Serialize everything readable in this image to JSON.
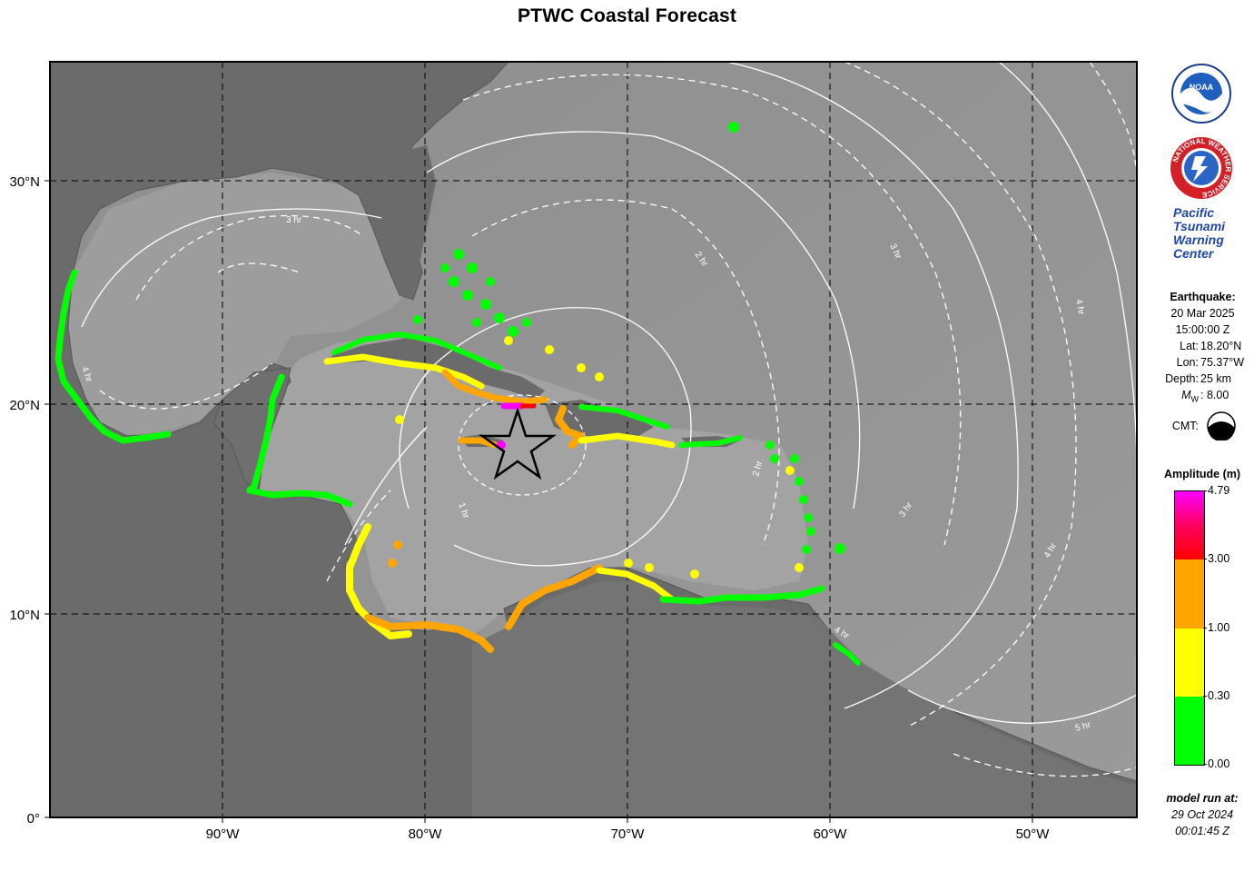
{
  "title": "PTWC Coastal Forecast",
  "axes": {
    "x_ticks": [
      {
        "label": "90°W",
        "lon": -90
      },
      {
        "label": "80°W",
        "lon": -80
      },
      {
        "label": "70°W",
        "lon": -70
      },
      {
        "label": "60°W",
        "lon": -60
      },
      {
        "label": "50°W",
        "lon": -50
      }
    ],
    "y_ticks": [
      {
        "label": "30°N",
        "lat": 30
      },
      {
        "label": "20°N",
        "lat": 20
      },
      {
        "label": "10°N",
        "lat": 10
      },
      {
        "label": "0°",
        "lat": 0
      }
    ],
    "lon_range": [
      -98.5,
      -45.5
    ],
    "lat_range": [
      0,
      35.5
    ]
  },
  "contour_labels": [
    "3 hr",
    "4 hr",
    "2 hr",
    "3 hr",
    "4 hr",
    "1 hr",
    "2 hr",
    "3 hr",
    "4 hr",
    "4 hr",
    "5 hr"
  ],
  "epicenter": {
    "lat": 18.2,
    "lon": -75.37,
    "marker": "star-icon"
  },
  "earthquake": {
    "heading": "Earthquake:",
    "date": "20 Mar 2025",
    "time": "15:00:00 Z",
    "lat_label": "Lat:",
    "lat_value": "18.20°N",
    "lon_label": "Lon:",
    "lon_value": "75.37°W",
    "depth_label": "Depth:",
    "depth_value": "25 km",
    "mag_symbol": "M",
    "mag_sub": "W",
    "mag_value": ": 8.00",
    "cmt_label": "CMT:"
  },
  "agency": {
    "noaa_text": "NOAA",
    "nws_ring_text": "NATIONAL WEATHER SERVICE",
    "ptwc_lines": [
      "Pacific",
      "Tsunami",
      "Warning",
      "Center"
    ]
  },
  "legend": {
    "title": "Amplitude (m)",
    "labels": [
      "4.79",
      "3.00",
      "1.00",
      "0.30",
      "0.00"
    ],
    "colors": {
      "magenta": "#ff00ff",
      "red": "#ff0000",
      "orange": "#ffa500",
      "yellow": "#ffff00",
      "green": "#00ff00"
    }
  },
  "model_run": {
    "heading": "model run at:",
    "date": "29 Oct 2024",
    "time": "00:01:45 Z"
  }
}
